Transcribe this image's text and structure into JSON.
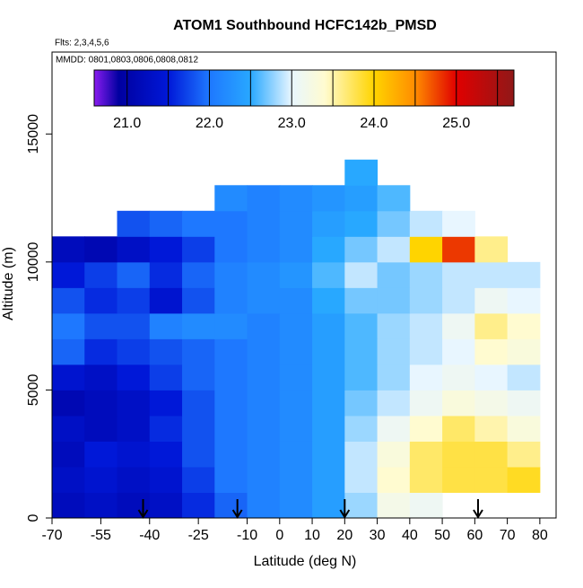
{
  "chart_data": {
    "type": "heatmap",
    "title": "ATOM1 Southbound HCFC142b_PMSD",
    "subtitle": "Flts: 2,3,4,5,6",
    "annotation": "MMDD: 0801,0803,0806,0808,0812",
    "xlabel": "Latitude (deg N)",
    "ylabel": "Altitude (m)",
    "xlim": [
      -70,
      85
    ],
    "ylim": [
      0,
      18200
    ],
    "xticks": [
      -70,
      -55,
      -40,
      -25,
      -10,
      0,
      10,
      20,
      30,
      40,
      50,
      60,
      70,
      80
    ],
    "yticks": [
      0,
      5000,
      10000,
      15000
    ],
    "x_bins": [
      -70,
      -60,
      -50,
      -40,
      -30,
      -20,
      -10,
      0,
      10,
      20,
      30,
      40,
      50,
      60,
      70,
      80
    ],
    "y_bins": [
      0,
      1000,
      2000,
      3000,
      4000,
      5000,
      6000,
      7000,
      8000,
      9000,
      10000,
      11000,
      12000,
      13000,
      14000
    ],
    "z": [
      [
        21.2,
        21.3,
        21.2,
        21.3,
        21.6,
        21.9,
        22.1,
        22.2,
        22.4,
        22.8,
        23.2,
        23.1,
        null,
        null,
        null
      ],
      [
        21.3,
        21.4,
        21.3,
        21.4,
        21.7,
        22.0,
        22.1,
        22.2,
        22.4,
        22.9,
        23.4,
        23.7,
        23.8,
        23.8,
        23.9
      ],
      [
        21.2,
        21.5,
        21.4,
        21.5,
        21.8,
        22.0,
        22.1,
        22.2,
        22.4,
        22.9,
        23.3,
        23.7,
        23.8,
        23.8,
        23.6
      ],
      [
        21.3,
        21.2,
        21.3,
        21.6,
        21.8,
        22.0,
        22.1,
        22.2,
        22.4,
        22.8,
        23.1,
        23.4,
        23.7,
        23.5,
        23.3
      ],
      [
        21.1,
        21.2,
        21.3,
        21.5,
        21.8,
        22.0,
        22.1,
        22.2,
        22.4,
        22.7,
        22.9,
        23.1,
        23.3,
        23.2,
        23.1
      ],
      [
        21.4,
        21.3,
        21.5,
        21.7,
        21.9,
        22.0,
        22.1,
        22.2,
        22.4,
        22.6,
        22.8,
        23.0,
        23.1,
        23.0,
        22.9
      ],
      [
        21.9,
        21.6,
        21.7,
        21.8,
        21.9,
        22.0,
        22.1,
        22.2,
        22.4,
        22.6,
        22.8,
        22.9,
        23.0,
        23.4,
        23.3
      ],
      [
        22.0,
        21.8,
        21.8,
        22.1,
        22.2,
        22.2,
        22.1,
        22.2,
        22.4,
        22.6,
        22.8,
        22.9,
        23.1,
        23.6,
        23.4
      ],
      [
        21.8,
        21.6,
        21.7,
        21.4,
        21.8,
        22.1,
        22.2,
        22.2,
        22.5,
        22.7,
        22.7,
        22.8,
        22.9,
        23.1,
        23.0
      ],
      [
        21.5,
        21.7,
        21.9,
        21.6,
        21.9,
        22.1,
        22.2,
        22.3,
        22.6,
        22.9,
        22.7,
        22.8,
        22.9,
        22.9,
        22.9
      ],
      [
        21.2,
        21.1,
        21.3,
        21.5,
        21.7,
        22.0,
        22.1,
        22.2,
        22.5,
        22.7,
        22.9,
        24.0,
        24.8,
        23.6,
        null
      ],
      [
        null,
        null,
        21.8,
        21.9,
        22.0,
        22.0,
        22.1,
        22.2,
        22.4,
        22.5,
        22.7,
        22.9,
        23.0,
        null,
        null
      ],
      [
        null,
        null,
        null,
        null,
        null,
        22.2,
        22.1,
        22.2,
        22.3,
        22.4,
        22.6,
        null,
        null,
        null,
        null
      ],
      [
        null,
        null,
        null,
        null,
        null,
        null,
        null,
        null,
        null,
        22.5,
        null,
        null,
        null,
        null,
        null
      ]
    ],
    "colorbar_lim": [
      20.6,
      25.7
    ],
    "colorbar_ticks": [
      {
        "value": 21,
        "label": "21.0"
      },
      {
        "value": 22,
        "label": "22.0"
      },
      {
        "value": 23,
        "label": "23.0"
      },
      {
        "value": 24,
        "label": "24.0"
      },
      {
        "value": 25,
        "label": "25.0"
      }
    ],
    "colorscale": [
      [
        20.6,
        "#8a1cf0"
      ],
      [
        20.9,
        "#0000a0"
      ],
      [
        21.5,
        "#0018d8"
      ],
      [
        22.0,
        "#1e78ff"
      ],
      [
        22.5,
        "#28a8ff"
      ],
      [
        23.0,
        "#e8f6ff"
      ],
      [
        23.4,
        "#fffbd0"
      ],
      [
        24.0,
        "#ffd400"
      ],
      [
        24.5,
        "#ff8c00"
      ],
      [
        25.0,
        "#e00000"
      ],
      [
        25.7,
        "#901818"
      ]
    ],
    "arrows_x": [
      -42,
      -13,
      20,
      61
    ]
  }
}
